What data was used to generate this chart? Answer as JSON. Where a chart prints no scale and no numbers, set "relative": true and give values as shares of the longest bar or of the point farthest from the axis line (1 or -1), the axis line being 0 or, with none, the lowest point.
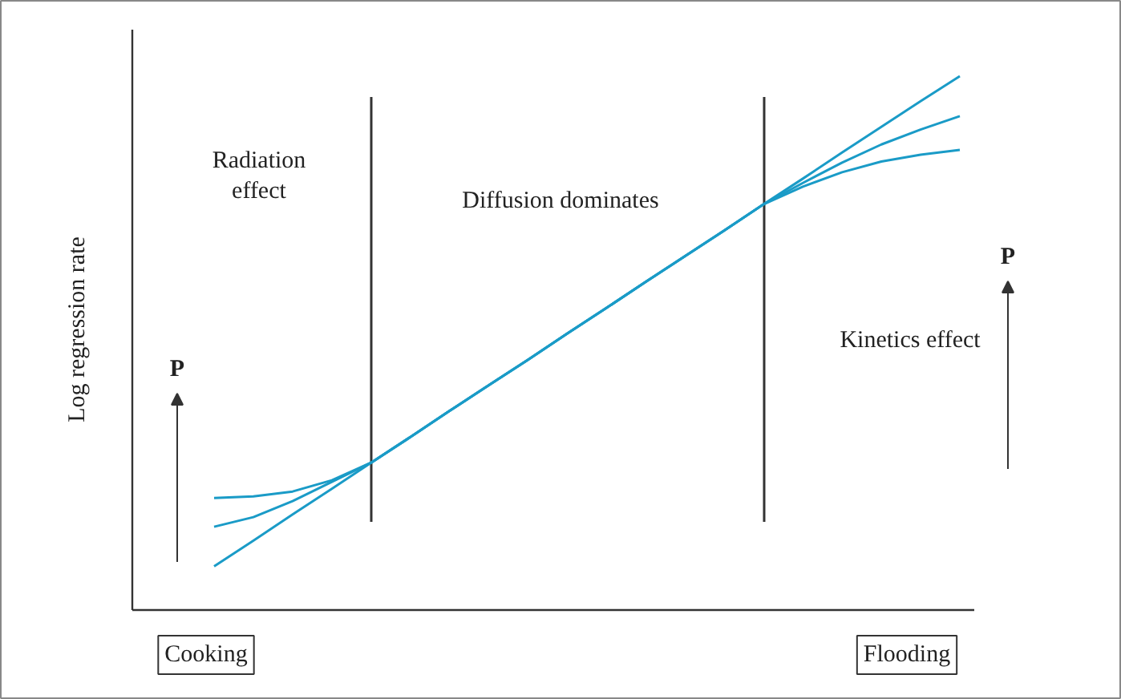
{
  "chart_data": {
    "type": "line",
    "relative": true,
    "ylabel": "Log regression rate",
    "categories": [
      null,
      null,
      null,
      null,
      null,
      null,
      null,
      null,
      null,
      null,
      null,
      null,
      null,
      null,
      null,
      null,
      null,
      null,
      null,
      null
    ],
    "series": [
      {
        "color": "#1a9bc7",
        "values": [
          0.082,
          0.13,
          0.179,
          0.227,
          0.276,
          0.324,
          0.373,
          0.421,
          0.469,
          0.518,
          0.566,
          0.615,
          0.663,
          0.711,
          0.76,
          0.808,
          0.857,
          0.905,
          0.953,
          1.0
        ]
      },
      {
        "color": "#1a9bc7",
        "values": [
          0.156,
          0.174,
          0.204,
          0.24,
          0.276,
          0.324,
          0.373,
          0.421,
          0.469,
          0.518,
          0.566,
          0.615,
          0.663,
          0.711,
          0.76,
          0.8,
          0.838,
          0.872,
          0.9,
          0.925
        ]
      },
      {
        "color": "#1a9bc7",
        "values": [
          0.21,
          0.213,
          0.222,
          0.243,
          0.276,
          0.324,
          0.373,
          0.421,
          0.469,
          0.518,
          0.566,
          0.615,
          0.663,
          0.711,
          0.76,
          0.793,
          0.82,
          0.84,
          0.853,
          0.862
        ]
      }
    ],
    "annotations": [
      "Radiation\neffect",
      "Diffusion dominates",
      "Kinetics effect",
      "P",
      "P",
      "Cooking",
      "Flooding"
    ]
  }
}
